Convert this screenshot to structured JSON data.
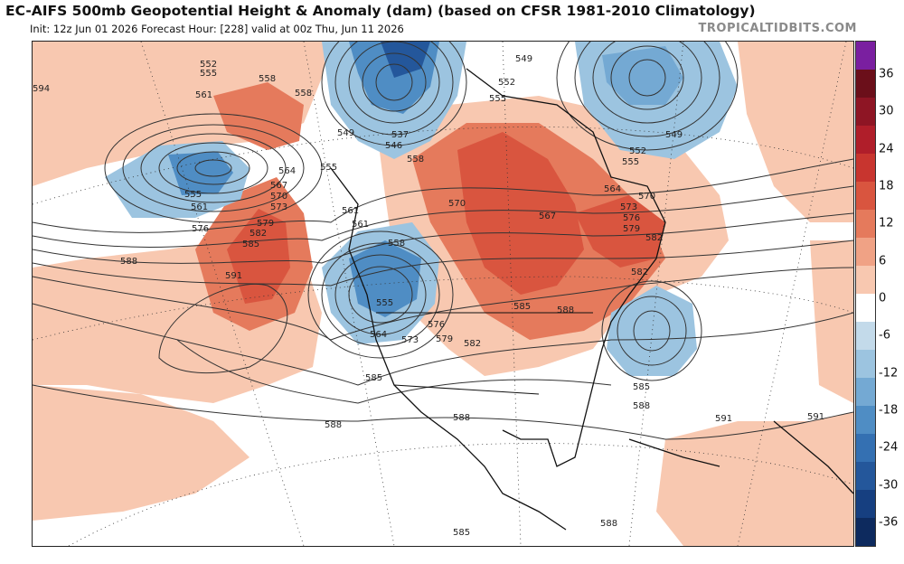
{
  "header": {
    "title": "EC-AIFS 500mb Geopotential Height & Anomaly (dam) (based on CFSR 1981-2010 Climatology)",
    "subtitle": "Init: 12z Jun 01 2026   Forecast Hour: [228]   valid at 00z Thu, Jun 11 2026",
    "site": "TROPICALTIDBITS.COM"
  },
  "colorbar": {
    "labels": [
      "36",
      "30",
      "24",
      "18",
      "12",
      "6",
      "0",
      "-6",
      "-12",
      "-18",
      "-24",
      "-30",
      "-36"
    ],
    "colors": [
      "#7a1fa0",
      "#6b0f1a",
      "#8e1524",
      "#b01e2a",
      "#c8352f",
      "#d9553f",
      "#e57a5c",
      "#f0a285",
      "#f8c8b0",
      "#ffffff",
      "#c3daea",
      "#9cc4e0",
      "#74a9d3",
      "#4f8dc4",
      "#3470b2",
      "#24579b",
      "#163f80",
      "#0d2a5e"
    ]
  },
  "map": {
    "contour_labels": [
      "552",
      "555",
      "558",
      "594",
      "561",
      "558",
      "549",
      "546",
      "537",
      "549",
      "552",
      "555",
      "549",
      "552",
      "555",
      "564",
      "555",
      "567",
      "570",
      "573",
      "561",
      "555",
      "561",
      "576",
      "579",
      "582",
      "585",
      "588",
      "591",
      "558",
      "561",
      "558",
      "570",
      "567",
      "564",
      "570",
      "573",
      "576",
      "579",
      "582",
      "555",
      "564",
      "573",
      "576",
      "579",
      "582",
      "585",
      "588",
      "582",
      "585",
      "588",
      "585",
      "588",
      "588",
      "591",
      "591",
      "585",
      "588"
    ],
    "icons": [
      "map-canvas"
    ]
  }
}
